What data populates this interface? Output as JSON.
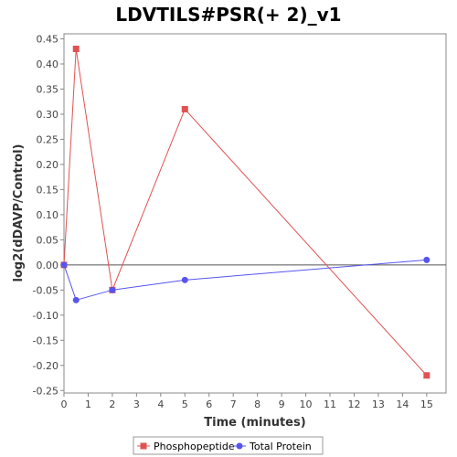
{
  "chart_data": {
    "type": "line",
    "title": "LDVTILS#PSR(+ 2)_v1",
    "xlabel": "Time (minutes)",
    "ylabel": "log2(dDAVP/Control)",
    "xlim": [
      0,
      15.8
    ],
    "ylim": [
      -0.255,
      0.46
    ],
    "xticks": [
      0,
      1,
      2,
      3,
      4,
      5,
      6,
      7,
      8,
      9,
      10,
      11,
      12,
      13,
      14,
      15
    ],
    "yticks": [
      -0.25,
      -0.2,
      -0.15,
      -0.1,
      -0.05,
      0.0,
      0.05,
      0.1,
      0.15,
      0.2,
      0.25,
      0.3,
      0.35,
      0.4,
      0.45
    ],
    "ytick_labels": [
      "-0.25",
      "-0.20",
      "-0.15",
      "-0.10",
      "-0.05",
      "0.00",
      "0.05",
      "0.10",
      "0.15",
      "0.20",
      "0.25",
      "0.30",
      "0.35",
      "0.40",
      "0.45"
    ],
    "zero_line": true,
    "grid": false,
    "legend_position": "bottom",
    "series": [
      {
        "name": "Phosphopeptide",
        "color": "#e05252",
        "marker": "square",
        "x": [
          0,
          0.5,
          2,
          5,
          15
        ],
        "y": [
          0.0,
          0.43,
          -0.05,
          0.31,
          -0.22
        ]
      },
      {
        "name": "Total Protein",
        "color": "#5555ee",
        "marker": "circle",
        "x": [
          0,
          0.5,
          2,
          5,
          15
        ],
        "y": [
          0.0,
          -0.07,
          -0.05,
          -0.03,
          0.01
        ]
      }
    ]
  }
}
